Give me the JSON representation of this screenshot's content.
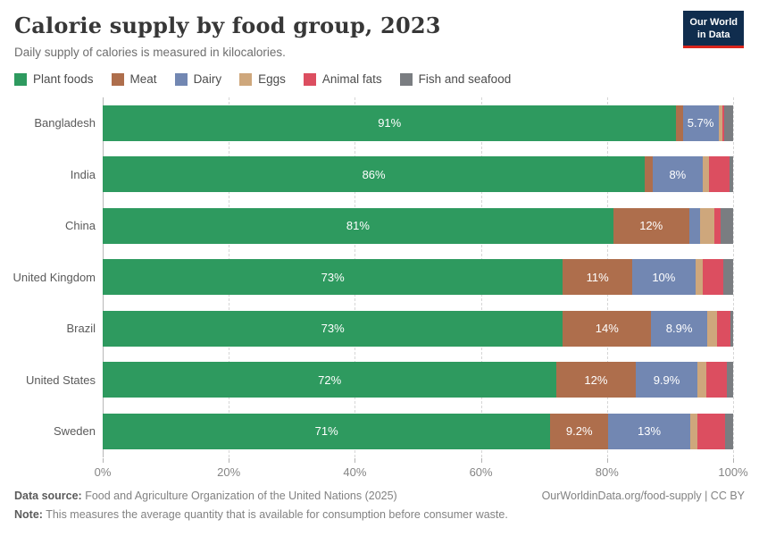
{
  "header": {
    "title": "Calorie supply by food group, 2023",
    "subtitle": "Daily supply of calories is measured in kilocalories.",
    "logo": {
      "line1": "Our World",
      "line2": "in Data",
      "bg_color": "#102d4e",
      "accent_color": "#d9251c"
    }
  },
  "legend": [
    {
      "label": "Plant foods",
      "color": "#2E9A5F"
    },
    {
      "label": "Meat",
      "color": "#AE6E4C"
    },
    {
      "label": "Dairy",
      "color": "#7287B2"
    },
    {
      "label": "Eggs",
      "color": "#CEA77C"
    },
    {
      "label": "Animal fats",
      "color": "#DC4E60"
    },
    {
      "label": "Fish and seafood",
      "color": "#7A7D81"
    }
  ],
  "chart_data": {
    "type": "bar",
    "stacked": true,
    "orientation": "horizontal",
    "unit": "%",
    "xlim": [
      0,
      100
    ],
    "x_ticks": [
      "0%",
      "20%",
      "40%",
      "60%",
      "80%",
      "100%"
    ],
    "grid": true,
    "legend_position": "top",
    "categories": [
      "Bangladesh",
      "India",
      "China",
      "United Kingdom",
      "Brazil",
      "United States",
      "Sweden"
    ],
    "series": [
      {
        "name": "Plant foods",
        "color": "#2E9A5F",
        "values": [
          91,
          86,
          81,
          73,
          73,
          72,
          71
        ],
        "labels": [
          "91%",
          "86%",
          "81%",
          "73%",
          "73%",
          "72%",
          "71%"
        ]
      },
      {
        "name": "Meat",
        "color": "#AE6E4C",
        "values": [
          1.0,
          1.2,
          12,
          11,
          14,
          12.5,
          9.2
        ],
        "labels": [
          "",
          "",
          "12%",
          "11%",
          "14%",
          "12%",
          "9.2%"
        ]
      },
      {
        "name": "Dairy",
        "color": "#7287B2",
        "values": [
          5.7,
          8,
          1.8,
          10,
          8.9,
          9.9,
          13
        ],
        "labels": [
          "5.7%",
          "8%",
          "",
          "10%",
          "8.9%",
          "9.9%",
          "13%"
        ]
      },
      {
        "name": "Eggs",
        "color": "#CEA77C",
        "values": [
          0.6,
          1.0,
          2.2,
          1.2,
          1.5,
          1.4,
          1.2
        ],
        "labels": [
          "",
          "",
          "",
          "",
          "",
          "",
          ""
        ]
      },
      {
        "name": "Animal fats",
        "color": "#DC4E60",
        "values": [
          0.3,
          3.2,
          1.0,
          3.3,
          2.2,
          3.2,
          4.3
        ],
        "labels": [
          "",
          "",
          "",
          "",
          "",
          "",
          ""
        ]
      },
      {
        "name": "Fish and seafood",
        "color": "#7A7D81",
        "values": [
          1.4,
          0.6,
          2.0,
          1.5,
          0.4,
          1.0,
          1.3
        ],
        "labels": [
          "",
          "",
          "",
          "",
          "",
          "",
          ""
        ]
      }
    ]
  },
  "footer": {
    "datasource_label": "Data source:",
    "datasource_text": " Food and Agriculture Organization of the United Nations (2025)",
    "note_label": "Note:",
    "note_text": " This measures the average quantity that is available for consumption before consumer waste.",
    "right_text": "OurWorldinData.org/food-supply | CC BY"
  }
}
